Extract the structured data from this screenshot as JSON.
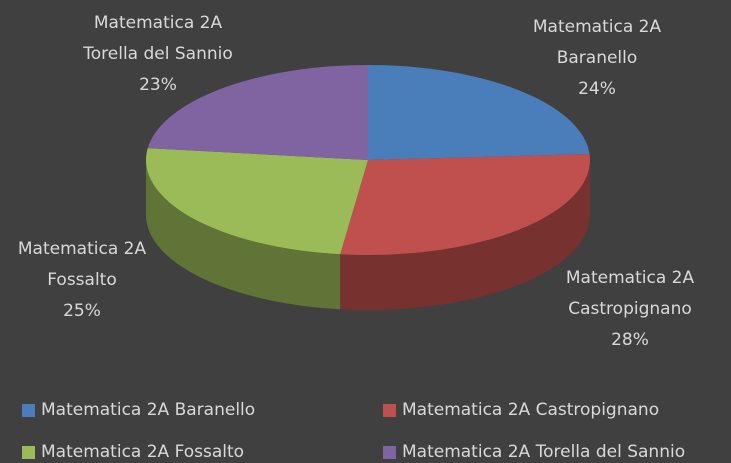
{
  "chart_data": {
    "type": "pie",
    "categories": [
      "Matematica 2A Baranello",
      "Matematica 2A Castropignano",
      "Matematica 2A Fossalto",
      "Matematica 2A Torella del Sannio"
    ],
    "values": [
      24,
      28,
      25,
      23
    ],
    "value_labels": [
      "24%",
      "28%",
      "25%",
      "23%"
    ],
    "colors": [
      "#4a7ebb",
      "#c0504d",
      "#9bbb59",
      "#8064a2"
    ],
    "legend": "bottom"
  }
}
